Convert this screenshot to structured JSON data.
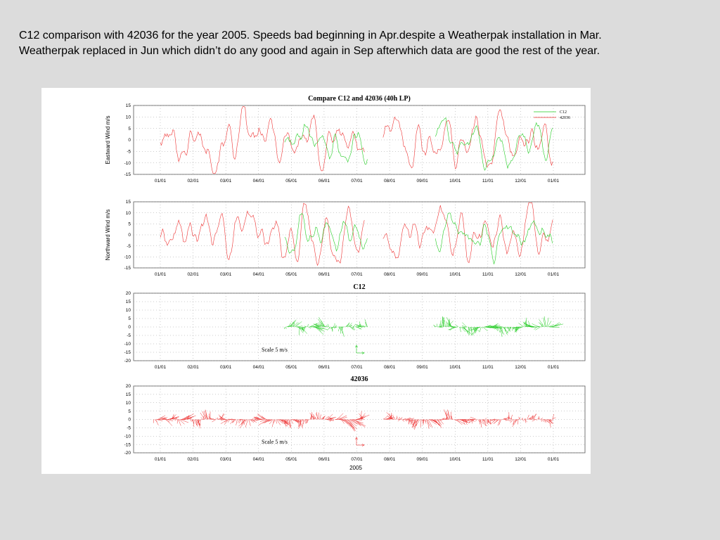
{
  "caption": {
    "line1": "C12 comparison with 42036 for the year 2005. Speeds bad beginning in Apr.despite a Weatherpak installation in Mar.",
    "line2": "Weatherpak replaced in Jun which didn’t do any good and again in Sep afterwhich data are good the rest of the year."
  },
  "colors": {
    "c12": "#22cc22",
    "b42036": "#ee3333",
    "grid": "#999999"
  },
  "chart_data": [
    {
      "type": "line",
      "title": "Compare C12 and 42036 (40h LP)",
      "ylabel": "Eastward Wind m/s",
      "ylim": [
        -15,
        15
      ],
      "yticks": [
        "15",
        "10",
        "5",
        "0",
        "-5",
        "-10",
        "-15"
      ],
      "xticks": [
        "01/01",
        "02/01",
        "03/01",
        "04/01",
        "05/01",
        "06/01",
        "07/01",
        "08/01",
        "09/01",
        "10/01",
        "11/01",
        "12/01",
        "01/01"
      ],
      "grid": true,
      "legend_position": "top-right",
      "series": [
        {
          "name": "C12",
          "color": "#22cc22",
          "coverage": [
            [
              3.8,
              6.35
            ],
            [
              8.4,
              12.0
            ]
          ]
        },
        {
          "name": "42036",
          "color": "#ee3333",
          "coverage": [
            [
              0.0,
              6.25
            ],
            [
              6.8,
              12.0
            ]
          ]
        }
      ]
    },
    {
      "type": "line",
      "title": "",
      "ylabel": "Northward Wind m/s",
      "ylim": [
        -15,
        15
      ],
      "yticks": [
        "15",
        "10",
        "5",
        "0",
        "-5",
        "-10",
        "-15"
      ],
      "xticks": [
        "01/01",
        "02/01",
        "03/01",
        "04/01",
        "05/01",
        "06/01",
        "07/01",
        "08/01",
        "09/01",
        "10/01",
        "11/01",
        "12/01",
        "01/01"
      ],
      "grid": true,
      "series": [
        {
          "name": "C12",
          "color": "#22cc22",
          "coverage": [
            [
              3.8,
              6.35
            ],
            [
              8.4,
              12.0
            ]
          ]
        },
        {
          "name": "42036",
          "color": "#ee3333",
          "coverage": [
            [
              0.0,
              6.25
            ],
            [
              6.8,
              12.0
            ]
          ]
        }
      ]
    },
    {
      "type": "stick",
      "title": "C12",
      "ylim": [
        -20,
        20
      ],
      "yticks": [
        "20",
        "15",
        "10",
        "5",
        "0",
        "-5",
        "-10",
        "-15",
        "-20"
      ],
      "xticks": [
        "01/01",
        "02/01",
        "03/01",
        "04/01",
        "05/01",
        "06/01",
        "07/01",
        "08/01",
        "09/01",
        "10/01",
        "11/01",
        "12/01",
        "01/01"
      ],
      "scale_label": "Scale 5 m/s",
      "color": "#22cc22",
      "coverage": [
        [
          3.8,
          6.35
        ],
        [
          8.4,
          12.0
        ]
      ]
    },
    {
      "type": "stick",
      "title": "42036",
      "ylim": [
        -20,
        20
      ],
      "yticks": [
        "20",
        "15",
        "10",
        "5",
        "0",
        "-5",
        "-10",
        "-15",
        "-20"
      ],
      "xticks": [
        "01/01",
        "02/01",
        "03/01",
        "04/01",
        "05/01",
        "06/01",
        "07/01",
        "08/01",
        "09/01",
        "10/01",
        "11/01",
        "12/01",
        "01/01"
      ],
      "scale_label": "Scale 5 m/s",
      "xlabel": "2005",
      "color": "#ee3333",
      "coverage": [
        [
          -0.2,
          6.25
        ],
        [
          6.8,
          12.0
        ]
      ]
    }
  ]
}
